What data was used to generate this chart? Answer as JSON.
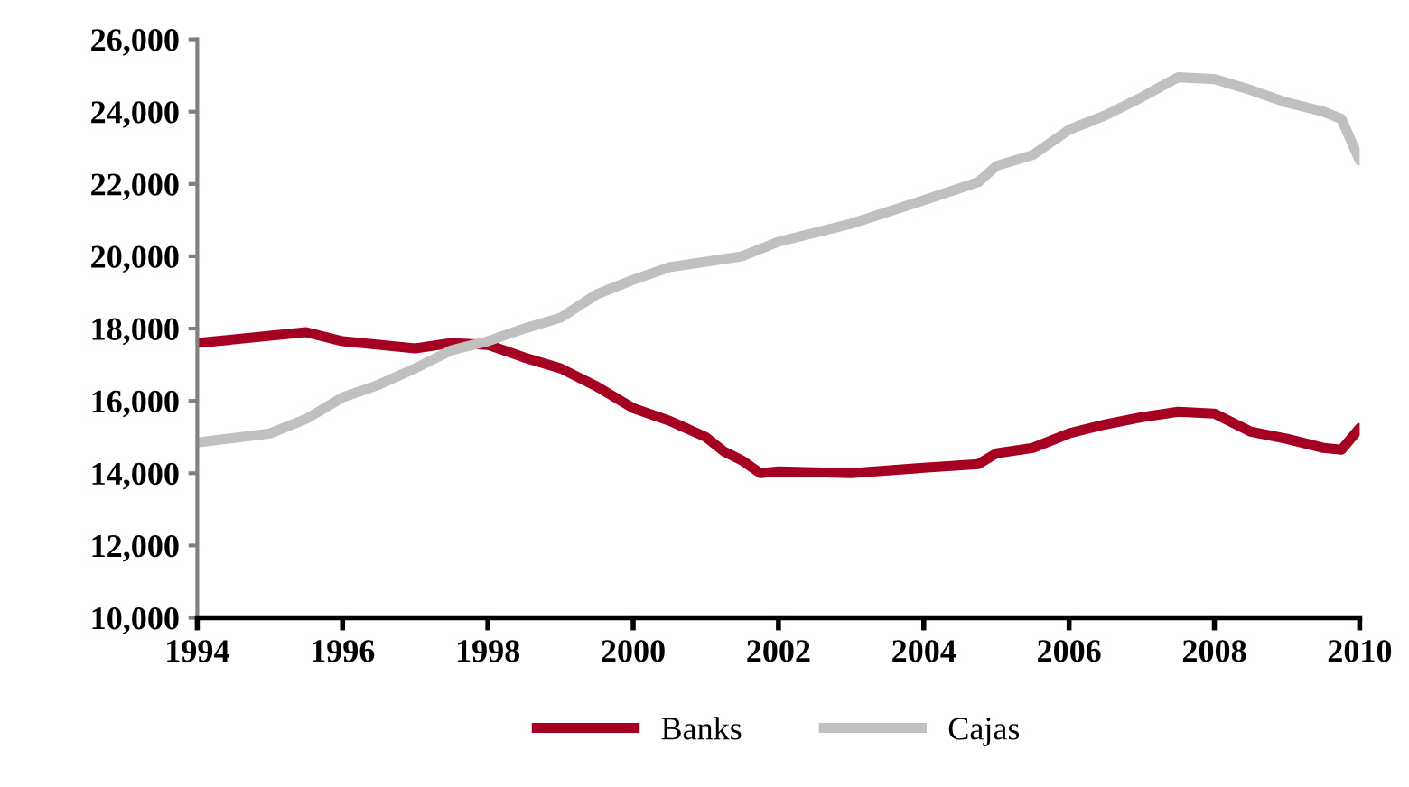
{
  "chart_data": {
    "type": "line",
    "xlim": [
      1994,
      2010
    ],
    "xticks": [
      1994,
      1996,
      1998,
      2000,
      2002,
      2004,
      2006,
      2008,
      2010
    ],
    "ylim": [
      10000,
      26000
    ],
    "yticks": [
      {
        "value": 10000,
        "label": "10,000"
      },
      {
        "value": 12000,
        "label": "12,000"
      },
      {
        "value": 14000,
        "label": "14,000"
      },
      {
        "value": 16000,
        "label": "16,000"
      },
      {
        "value": 18000,
        "label": "18,000"
      },
      {
        "value": 20000,
        "label": "20,000"
      },
      {
        "value": 22000,
        "label": "22,000"
      },
      {
        "value": 24000,
        "label": "24,000"
      },
      {
        "value": 26000,
        "label": "26,000"
      }
    ],
    "grid": false,
    "legend": "bottom",
    "marker": "none",
    "line_style": "solid",
    "series": [
      {
        "name": "Banks",
        "color": "#a50021",
        "x": [
          1994,
          1995,
          1995.5,
          1996,
          1997,
          1997.5,
          1998,
          1998.5,
          1999,
          1999.5,
          2000,
          2000.5,
          2001,
          2001.25,
          2001.5,
          2001.75,
          2002,
          2003,
          2004,
          2004.75,
          2005,
          2005.5,
          2006,
          2006.5,
          2007,
          2007.5,
          2008,
          2008.5,
          2009,
          2009.5,
          2009.75,
          2010
        ],
        "values": [
          17600,
          17800,
          17900,
          17650,
          17450,
          17600,
          17550,
          17200,
          16900,
          16400,
          15800,
          15450,
          15000,
          14600,
          14350,
          14000,
          14050,
          14000,
          14150,
          14250,
          14550,
          14700,
          15100,
          15350,
          15550,
          15700,
          15650,
          15150,
          14950,
          14700,
          14650,
          15250
        ]
      },
      {
        "name": "Cajas",
        "color": "#c0c0c0",
        "x": [
          1994,
          1995,
          1995.5,
          1996,
          1996.5,
          1997,
          1997.5,
          1998,
          1998.5,
          1999,
          1999.5,
          2000,
          2000.5,
          2001,
          2001.5,
          2002,
          2003,
          2004,
          2004.75,
          2005,
          2005.5,
          2006,
          2006.5,
          2007,
          2007.5,
          2008,
          2008.5,
          2009,
          2009.5,
          2009.75,
          2010
        ],
        "values": [
          14850,
          15100,
          15500,
          16100,
          16450,
          16900,
          17400,
          17650,
          18000,
          18300,
          18950,
          19350,
          19700,
          19850,
          20000,
          20400,
          20900,
          21550,
          22050,
          22500,
          22800,
          23500,
          23900,
          24400,
          24950,
          24900,
          24600,
          24250,
          24000,
          23800,
          22650
        ]
      }
    ]
  }
}
